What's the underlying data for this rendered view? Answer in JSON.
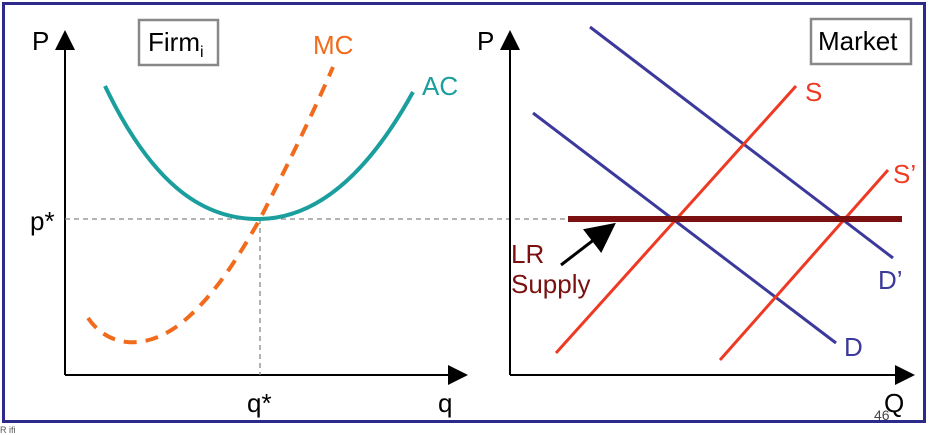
{
  "firm_panel": {
    "title": "Firm",
    "title_subscript": "i",
    "y_axis_label": "P",
    "x_axis_label": "q",
    "price_label": "p*",
    "quantity_label": "q*",
    "mc_label": "MC",
    "ac_label": "AC"
  },
  "market_panel": {
    "title": "Market",
    "y_axis_label": "P",
    "x_axis_label": "Q",
    "supply_label": "S",
    "supply_shifted_label": "S’",
    "demand_label": "D",
    "demand_shifted_label": "D’",
    "lr_supply_label_line1": "LR",
    "lr_supply_label_line2": "Supply"
  },
  "slide_number": "46",
  "cutoff_text": "R  ifi",
  "colors": {
    "frame": "#2e2a8c",
    "mc": "#f26b1d",
    "ac": "#1a9e9e",
    "supply": "#ee3a24",
    "demand": "#3b3a9c",
    "lr_supply": "#7a1010",
    "axes": "#000000",
    "guide": "#888888"
  }
}
